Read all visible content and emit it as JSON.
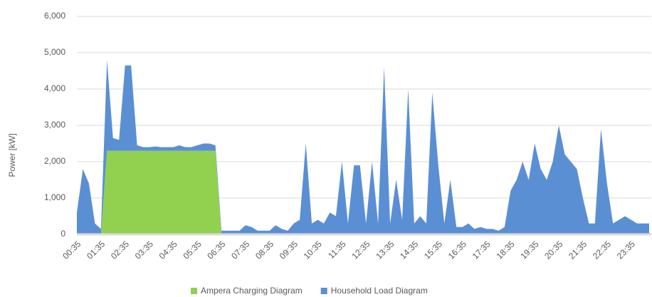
{
  "chart_data": {
    "type": "stacked-area",
    "y_label": "Power [kW]",
    "categories": [
      "00:35",
      null,
      null,
      null,
      "01:35",
      null,
      null,
      null,
      "02:35",
      null,
      null,
      null,
      "03:35",
      null,
      null,
      null,
      "04:35",
      null,
      null,
      null,
      "05:35",
      null,
      null,
      null,
      "06:35",
      null,
      null,
      null,
      "07:35",
      null,
      null,
      null,
      "08:35",
      null,
      null,
      null,
      "09:35",
      null,
      null,
      null,
      "10:35",
      null,
      null,
      null,
      "11:35",
      null,
      null,
      null,
      "12:35",
      null,
      null,
      null,
      "13:35",
      null,
      null,
      null,
      "14:35",
      null,
      null,
      null,
      "15:35",
      null,
      null,
      null,
      "16:35",
      null,
      null,
      null,
      "17:35",
      null,
      null,
      null,
      "18:35",
      null,
      null,
      null,
      "19:35",
      null,
      null,
      null,
      "20:35",
      null,
      null,
      null,
      "21:35",
      null,
      null,
      null,
      "22:35",
      null,
      null,
      null,
      "23:35",
      null,
      null,
      null
    ],
    "series": [
      {
        "name": "Ampera Charging Diagram",
        "color": "#92d050",
        "values": [
          0,
          0,
          0,
          0,
          0,
          2300,
          2300,
          2300,
          2300,
          2300,
          2300,
          2300,
          2300,
          2300,
          2300,
          2300,
          2300,
          2300,
          2300,
          2300,
          2300,
          2300,
          2300,
          2300,
          0,
          0,
          0,
          0,
          0,
          0,
          0,
          0,
          0,
          0,
          0,
          0,
          0,
          0,
          0,
          0,
          0,
          0,
          0,
          0,
          0,
          0,
          0,
          0,
          0,
          0,
          0,
          0,
          0,
          0,
          0,
          0,
          0,
          0,
          0,
          0,
          0,
          0,
          0,
          0,
          0,
          0,
          0,
          0,
          0,
          0,
          0,
          0,
          0,
          0,
          0,
          0,
          0,
          0,
          0,
          0,
          0,
          0,
          0,
          0,
          0,
          0,
          0,
          0,
          0,
          0,
          0,
          0,
          0,
          0,
          0,
          0
        ]
      },
      {
        "name": "Household Load Diagram",
        "color": "#5b8fd4",
        "values": [
          600,
          1800,
          1400,
          300,
          150,
          2500,
          350,
          300,
          2350,
          2350,
          150,
          100,
          100,
          120,
          100,
          100,
          100,
          150,
          100,
          100,
          150,
          200,
          200,
          150,
          100,
          100,
          100,
          100,
          250,
          200,
          100,
          100,
          100,
          250,
          150,
          100,
          300,
          400,
          2500,
          300,
          400,
          300,
          600,
          500,
          2000,
          300,
          1900,
          1900,
          300,
          2000,
          300,
          4600,
          300,
          1500,
          400,
          4000,
          300,
          500,
          300,
          3900,
          1900,
          300,
          1500,
          200,
          200,
          300,
          150,
          200,
          150,
          150,
          100,
          200,
          1200,
          1500,
          2000,
          1500,
          2500,
          1800,
          1500,
          2000,
          3000,
          2200,
          2000,
          1800,
          1000,
          300,
          300,
          2900,
          1400,
          300,
          400,
          500,
          400,
          300,
          300,
          300
        ]
      }
    ],
    "ylim": [
      0,
      6000
    ],
    "yticks": [
      0,
      {
        "value": 1000,
        "label": "1,000"
      },
      {
        "value": 2000,
        "label": "2,000"
      },
      {
        "value": 3000,
        "label": "3,000"
      },
      {
        "value": 4000,
        "label": "4,000"
      },
      {
        "value": 5000,
        "label": "5,000"
      },
      {
        "value": 6000,
        "label": "6,000"
      }
    ],
    "grid": true,
    "legend": "bottom"
  }
}
